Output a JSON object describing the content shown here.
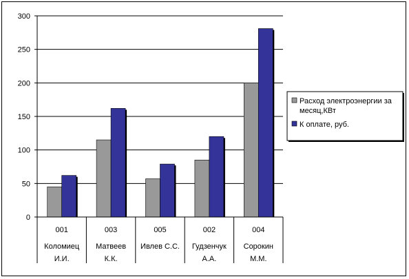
{
  "chart_data": {
    "type": "bar",
    "categories": [
      {
        "code": "001",
        "name_line1": "Коломиец",
        "name_line2": "И.И."
      },
      {
        "code": "003",
        "name_line1": "Матвеев",
        "name_line2": "К.К."
      },
      {
        "code": "005",
        "name_line1": "Ивлев С.С.",
        "name_line2": ""
      },
      {
        "code": "002",
        "name_line1": "Гудзенчук",
        "name_line2": "А.А."
      },
      {
        "code": "004",
        "name_line1": "Сорокин",
        "name_line2": "М.М."
      }
    ],
    "series": [
      {
        "name_line1": "Расход электроэнергии за",
        "name_line2": "месяц,КВт",
        "color": "#999999",
        "values": [
          45,
          115,
          57,
          85,
          200
        ]
      },
      {
        "name_line1": "К оплате, руб.",
        "name_line2": "",
        "color": "#333399",
        "values": [
          62,
          162,
          79,
          120,
          281
        ]
      }
    ],
    "ylim": [
      0,
      300
    ],
    "yticks": [
      0,
      50,
      100,
      150,
      200,
      250,
      300
    ],
    "grid": true,
    "legend_position": "right"
  }
}
